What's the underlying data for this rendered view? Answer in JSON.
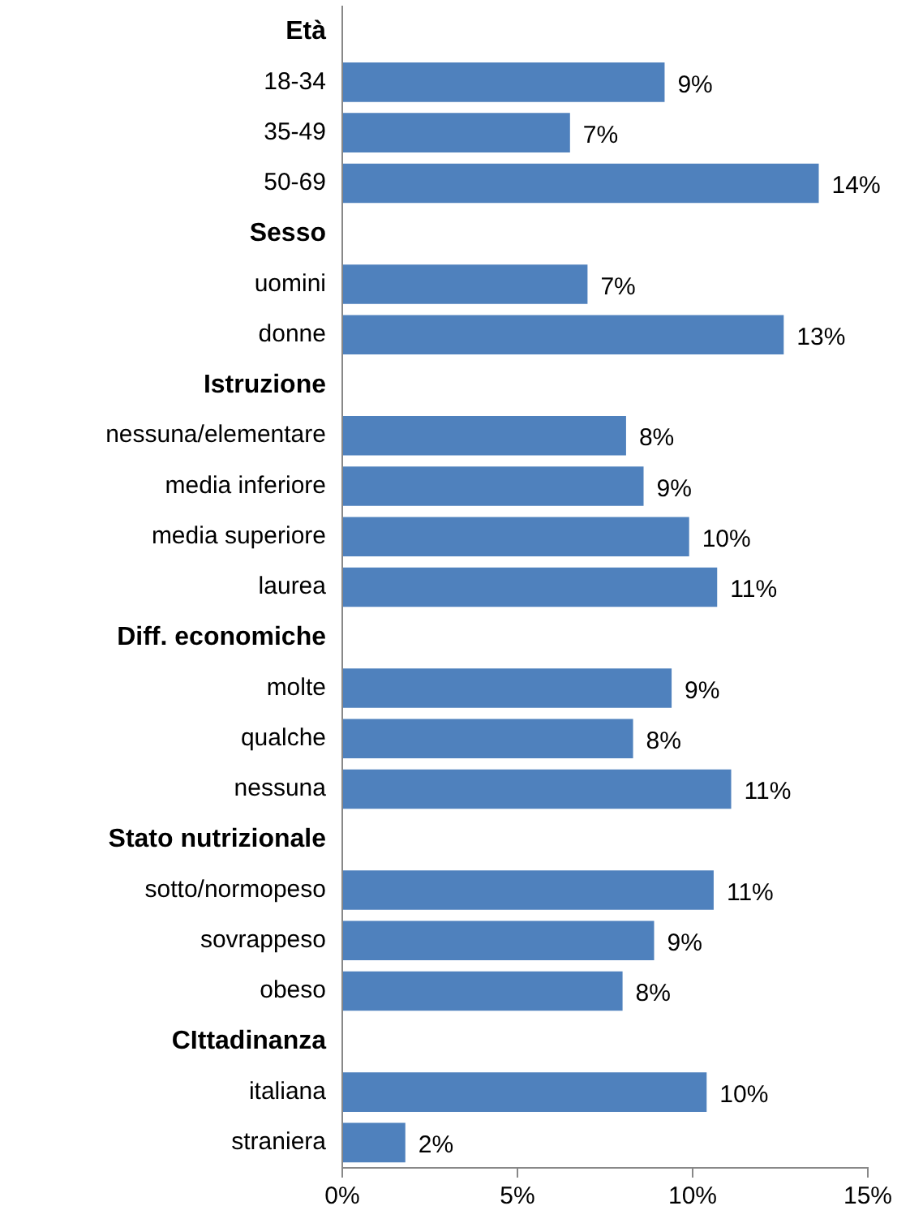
{
  "chart_data": {
    "type": "bar",
    "orientation": "horizontal",
    "categories": [
      "Età",
      "18-34",
      "35-49",
      "50-69",
      "Sesso",
      "uomini",
      "donne",
      "Istruzione",
      "nessuna/elementare",
      "media inferiore",
      "media superiore",
      "laurea",
      "Diff. economiche",
      "molte",
      "qualche",
      "nessuna",
      "Stato nutrizionale",
      "sotto/normopeso",
      "sovrappeso",
      "obeso",
      "CIttadinanza",
      "italiana",
      "straniera"
    ],
    "values": [
      null,
      9.2,
      6.5,
      13.6,
      null,
      7.0,
      12.6,
      null,
      8.1,
      8.6,
      9.9,
      10.7,
      null,
      9.4,
      8.3,
      11.1,
      null,
      10.6,
      8.9,
      8.0,
      null,
      10.4,
      1.8
    ],
    "value_labels": [
      null,
      "9%",
      "7%",
      "14%",
      null,
      "7%",
      "13%",
      null,
      "8%",
      "9%",
      "10%",
      "11%",
      null,
      "9%",
      "8%",
      "11%",
      null,
      "11%",
      "9%",
      "8%",
      null,
      "10%",
      "2%"
    ],
    "color": "#4f81bd",
    "xlim": [
      0,
      15
    ],
    "xticks": [
      {
        "value": 0,
        "label": "0%"
      },
      {
        "value": 5,
        "label": "5%"
      },
      {
        "value": 10,
        "label": "10%"
      },
      {
        "value": 15,
        "label": "15%"
      }
    ],
    "grid": false,
    "legend": false
  }
}
